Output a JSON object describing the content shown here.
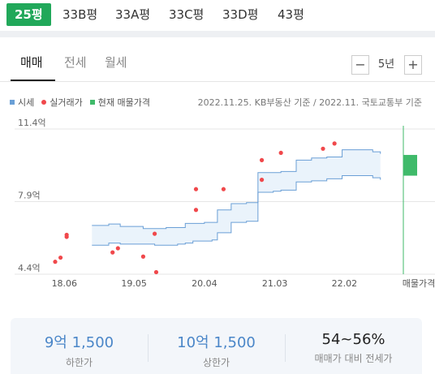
{
  "size_tabs": [
    "25평",
    "33B평",
    "33A평",
    "33C평",
    "33D평",
    "43평"
  ],
  "active_size_index": 0,
  "deal_tabs": [
    "매매",
    "전세",
    "월세"
  ],
  "active_deal_index": 0,
  "period": {
    "minus": "−",
    "value": "5년",
    "plus": "+"
  },
  "legend": {
    "market": "시세",
    "actual": "실거래가",
    "current": "현재 매물가격"
  },
  "source_note": "2022.11.25. KB부동산 기준 / 2022.11. 국토교통부 기준",
  "colors": {
    "accent": "#21a85a",
    "market_line": "#6a9fd6",
    "market_fill": "#eaf3fb",
    "actual_dot": "#f0484b",
    "current": "#3fba6a"
  },
  "chart_data": {
    "type": "line",
    "y_ticks": [
      "11.4억",
      "7.9억",
      "4.4억"
    ],
    "y_tick_values": [
      11.4,
      7.9,
      4.4
    ],
    "x_ticks": [
      "18.06",
      "19.05",
      "20.04",
      "21.03",
      "22.02"
    ],
    "x_tick_values": [
      2018.42,
      2019.33,
      2020.25,
      2021.17,
      2022.08
    ],
    "x_extra_label": "매물가격",
    "xlim": [
      2018.3,
      2022.85
    ],
    "ylim": [
      4.4,
      11.4
    ],
    "series": [
      {
        "name": "시세",
        "x": [
          2018.78,
          2019.0,
          2019.05,
          2019.15,
          2019.3,
          2019.45,
          2019.6,
          2019.75,
          2019.9,
          2020.0,
          2020.1,
          2020.25,
          2020.35,
          2020.42,
          2020.5,
          2020.6,
          2020.7,
          2020.8,
          2020.9,
          2020.95,
          2021.05,
          2021.15,
          2021.25,
          2021.35,
          2021.45,
          2021.55,
          2021.65,
          2021.75,
          2021.85,
          2021.95,
          2022.05,
          2022.15,
          2022.25,
          2022.35,
          2022.45,
          2022.55
        ],
        "upper": [
          6.75,
          6.82,
          6.82,
          6.7,
          6.7,
          6.6,
          6.6,
          6.65,
          6.65,
          6.85,
          6.85,
          6.9,
          6.9,
          7.5,
          7.5,
          7.8,
          7.8,
          7.85,
          7.85,
          9.3,
          9.3,
          9.3,
          9.35,
          9.35,
          9.9,
          9.9,
          10.0,
          10.0,
          10.05,
          10.05,
          10.4,
          10.4,
          10.4,
          10.4,
          10.3,
          10.2
        ],
        "lower": [
          5.8,
          5.9,
          5.9,
          5.85,
          5.85,
          5.85,
          5.8,
          5.8,
          5.85,
          5.9,
          6.0,
          6.0,
          6.05,
          6.4,
          6.4,
          6.9,
          6.9,
          6.95,
          6.95,
          8.35,
          8.35,
          8.4,
          8.45,
          8.45,
          8.85,
          8.85,
          8.9,
          8.9,
          9.0,
          9.0,
          9.15,
          9.15,
          9.15,
          9.15,
          9.05,
          8.95
        ]
      },
      {
        "name": "실거래가",
        "x": [
          2018.3,
          2018.37,
          2018.45,
          2018.45,
          2019.05,
          2019.12,
          2019.45,
          2019.6,
          2019.62,
          2020.14,
          2020.14,
          2020.5,
          2021.0,
          2021.0,
          2021.25,
          2021.8,
          2021.95
        ],
        "y": [
          5.0,
          5.2,
          6.2,
          6.3,
          5.45,
          5.65,
          5.25,
          6.35,
          4.5,
          7.5,
          8.5,
          8.5,
          8.95,
          9.9,
          10.25,
          10.45,
          10.7
        ]
      },
      {
        "name": "현재 매물가격",
        "x": [
          2022.85
        ],
        "low": 9.15,
        "high": 10.15
      }
    ]
  },
  "summary": [
    {
      "value": "9억 1,500",
      "label": "하한가"
    },
    {
      "value": "10억 1,500",
      "label": "상한가"
    },
    {
      "value": "54~56%",
      "label": "매매가 대비 전세가"
    }
  ]
}
